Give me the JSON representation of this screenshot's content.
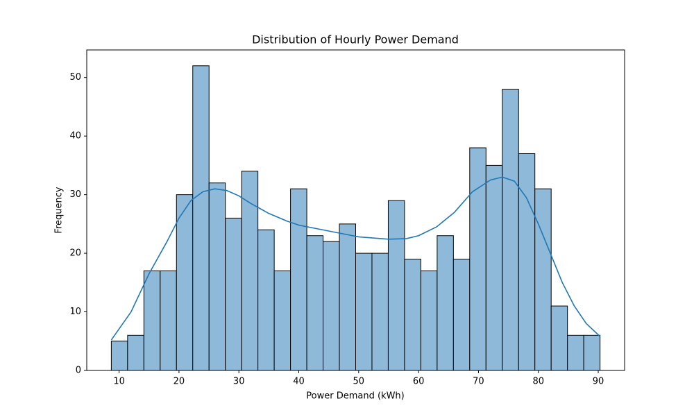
{
  "chart_data": {
    "type": "histogram",
    "title": "Distribution of Hourly Power Demand",
    "x_label": "Power Demand (kWh)",
    "y_label": "Frequency",
    "bins": [
      8.7,
      11.42,
      14.14,
      16.86,
      19.58,
      22.3,
      25.02,
      27.74,
      30.46,
      33.18,
      35.9,
      38.62,
      41.34,
      44.06,
      46.78,
      49.5,
      52.22,
      54.94,
      57.66,
      60.38,
      63.1,
      65.82,
      68.54,
      71.26,
      73.98,
      76.7,
      79.42,
      82.14,
      84.86,
      87.58,
      90.3
    ],
    "counts": [
      5,
      6,
      17,
      17,
      30,
      52,
      32,
      26,
      34,
      24,
      17,
      31,
      23,
      22,
      25,
      20,
      20,
      29,
      19,
      17,
      23,
      19,
      38,
      35,
      48,
      37,
      31,
      11,
      6,
      6
    ],
    "color": "#8fb9d9",
    "edge_color": "#000000",
    "kde": {
      "color": "#1f77b4",
      "x": [
        8.7,
        12,
        15,
        18,
        20,
        22,
        24,
        26,
        28,
        30,
        32,
        35,
        38,
        40,
        45,
        50,
        55,
        58,
        60,
        63,
        66,
        69,
        72,
        74,
        76,
        78,
        80,
        82,
        84,
        86,
        88,
        90.3
      ],
      "y": [
        5.2,
        10,
        16.5,
        22,
        26,
        29,
        30.5,
        31,
        30.7,
        29.8,
        28.5,
        26.8,
        25.5,
        24.8,
        23.8,
        22.8,
        22.4,
        22.5,
        23,
        24.5,
        27,
        30.5,
        32.5,
        33,
        32.3,
        29.5,
        25,
        20,
        15,
        11,
        8,
        5.8
      ]
    },
    "xlim": [
      4.6,
      94.4
    ],
    "ylim": [
      0,
      54.7
    ],
    "xticks": [
      10,
      20,
      30,
      40,
      50,
      60,
      70,
      80,
      90
    ],
    "yticks": [
      0,
      10,
      20,
      30,
      40,
      50
    ]
  }
}
